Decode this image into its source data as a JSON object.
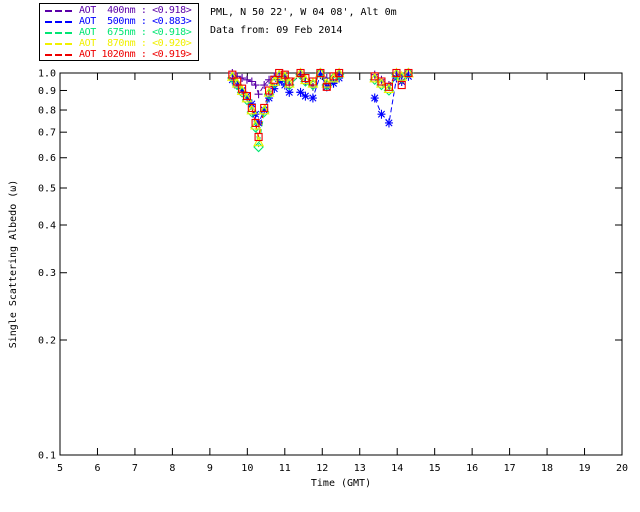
{
  "header": {
    "line1": "PML, N 50 22', W 04 08', Alt 0m",
    "line2": "Data from: 09 Feb 2014"
  },
  "legend": {
    "entries": [
      {
        "label": "AOT  400nm : <0.918>",
        "color": "#5a00a8",
        "marker": "plus"
      },
      {
        "label": "AOT  500nm : <0.883>",
        "color": "#0000ff",
        "marker": "asterisk"
      },
      {
        "label": "AOT  675nm : <0.918>",
        "color": "#00e673",
        "marker": "diamond"
      },
      {
        "label": "AOT  870nm : <0.920>",
        "color": "#f0f000",
        "marker": "triangle"
      },
      {
        "label": "AOT 1020nm : <0.919>",
        "color": "#ee0000",
        "marker": "square"
      }
    ]
  },
  "chart_data": {
    "type": "scatter",
    "title": "",
    "xlabel": "Time (GMT)",
    "ylabel": "Single Scattering Albedo (ω)",
    "xlim": [
      5,
      20
    ],
    "ylim": [
      0.1,
      1.0
    ],
    "yscale": "log",
    "grid": false,
    "x_ticks": [
      5,
      6,
      7,
      8,
      9,
      10,
      11,
      12,
      13,
      14,
      15,
      16,
      17,
      18,
      19,
      20
    ],
    "y_ticks": [
      1.0,
      0.9,
      0.8,
      0.7,
      0.6,
      0.5,
      0.4,
      0.3,
      0.2,
      0.1
    ],
    "line_style": "dashed",
    "x": [
      9.6,
      9.73,
      9.86,
      9.99,
      10.12,
      10.22,
      10.3,
      10.45,
      10.58,
      10.72,
      10.85,
      11.0,
      11.12,
      11.42,
      11.55,
      11.75,
      11.95,
      12.12,
      12.3,
      12.45,
      13.4,
      13.58,
      13.78,
      13.98,
      14.12,
      14.3
    ],
    "series": [
      {
        "name": "AOT 400nm",
        "color": "#5a00a8",
        "marker": "plus",
        "values": [
          1.0,
          0.98,
          0.97,
          0.96,
          0.95,
          0.93,
          0.88,
          0.93,
          0.96,
          0.98,
          1.0,
          0.98,
          0.93,
          0.99,
          0.95,
          0.92,
          1.0,
          0.97,
          0.94,
          0.99,
          0.99,
          0.96,
          0.93,
          1.0,
          0.98,
          1.0
        ]
      },
      {
        "name": "AOT 500nm",
        "color": "#0000ff",
        "marker": "asterisk",
        "values": [
          0.96,
          0.93,
          0.9,
          0.87,
          0.83,
          0.78,
          0.74,
          0.8,
          0.86,
          0.91,
          0.95,
          0.93,
          0.89,
          0.89,
          0.87,
          0.86,
          0.99,
          0.92,
          0.94,
          0.97,
          0.86,
          0.78,
          0.74,
          0.97,
          0.95,
          0.98
        ]
      },
      {
        "name": "AOT 675nm",
        "color": "#00e673",
        "marker": "diamond",
        "values": [
          0.97,
          0.93,
          0.89,
          0.85,
          0.79,
          0.72,
          0.64,
          0.79,
          0.88,
          0.94,
          0.98,
          0.97,
          0.93,
          0.99,
          0.95,
          0.93,
          1.0,
          0.93,
          0.97,
          0.99,
          0.96,
          0.93,
          0.9,
          0.99,
          0.97,
          1.0
        ]
      },
      {
        "name": "AOT 870nm",
        "color": "#f0f000",
        "marker": "triangle",
        "values": [
          0.98,
          0.94,
          0.9,
          0.86,
          0.8,
          0.73,
          0.66,
          0.8,
          0.89,
          0.95,
          0.99,
          0.98,
          0.94,
          1.0,
          0.96,
          0.94,
          1.0,
          0.94,
          0.97,
          1.0,
          0.97,
          0.94,
          0.91,
          1.0,
          0.98,
          1.0
        ]
      },
      {
        "name": "AOT 1020nm",
        "color": "#ee0000",
        "marker": "square",
        "values": [
          0.99,
          0.95,
          0.91,
          0.87,
          0.81,
          0.74,
          0.68,
          0.81,
          0.9,
          0.96,
          1.0,
          0.99,
          0.95,
          1.0,
          0.97,
          0.95,
          1.0,
          0.92,
          0.98,
          1.0,
          0.98,
          0.95,
          0.92,
          1.0,
          0.93,
          1.0
        ]
      }
    ]
  }
}
